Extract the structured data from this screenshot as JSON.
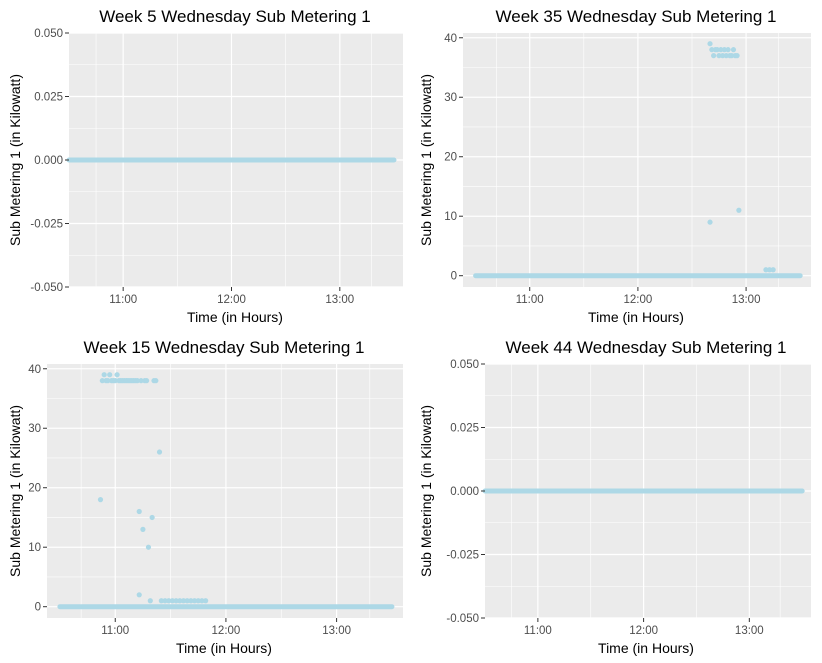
{
  "chart_data": [
    {
      "type": "scatter",
      "title": "Week 5 Wednesday Sub Metering 1",
      "xlabel": "Time (in Hours)",
      "ylabel": "Sub Metering 1 (in Kilowatt)",
      "xlim": [
        "10:30",
        "13:35"
      ],
      "ylim": [
        -0.05,
        0.05
      ],
      "x_ticks": [
        "11:00",
        "12:00",
        "13:00"
      ],
      "y_ticks": [
        "-0.050",
        "-0.025",
        "0.000",
        "0.025",
        "0.050"
      ],
      "y_tick_values": [
        -0.05,
        -0.025,
        0,
        0.025,
        0.05
      ],
      "grid": true,
      "point_color": "#add8e6",
      "baseline": {
        "from": "10:30",
        "to": "13:30",
        "value": 0
      },
      "points": []
    },
    {
      "type": "scatter",
      "title": "Week 35 Wednesday Sub Metering 1",
      "xlabel": "Time (in Hours)",
      "ylabel": "Sub Metering 1 (in Kilowatt)",
      "xlim": [
        "10:23",
        "13:36"
      ],
      "ylim": [
        -1.9,
        40.8
      ],
      "x_ticks": [
        "11:00",
        "12:00",
        "13:00"
      ],
      "y_ticks": [
        "0",
        "10",
        "20",
        "30",
        "40"
      ],
      "y_tick_values": [
        0,
        10,
        20,
        30,
        40
      ],
      "grid": true,
      "point_color": "#add8e6",
      "baseline": {
        "from": "10:30",
        "to": "13:30",
        "value": 0
      },
      "points": [
        {
          "x": "12:40",
          "y": 9
        },
        {
          "x": "12:40",
          "y": 39
        },
        {
          "x": "12:41",
          "y": 38
        },
        {
          "x": "12:42",
          "y": 37
        },
        {
          "x": "12:43",
          "y": 38
        },
        {
          "x": "12:44",
          "y": 38
        },
        {
          "x": "12:45",
          "y": 37
        },
        {
          "x": "12:46",
          "y": 38
        },
        {
          "x": "12:47",
          "y": 37
        },
        {
          "x": "12:48",
          "y": 38
        },
        {
          "x": "12:49",
          "y": 37
        },
        {
          "x": "12:50",
          "y": 38
        },
        {
          "x": "12:51",
          "y": 37
        },
        {
          "x": "12:52",
          "y": 37
        },
        {
          "x": "12:53",
          "y": 38
        },
        {
          "x": "12:54",
          "y": 37
        },
        {
          "x": "12:55",
          "y": 37
        },
        {
          "x": "12:56",
          "y": 11
        },
        {
          "x": "13:11",
          "y": 1
        },
        {
          "x": "13:13",
          "y": 1
        },
        {
          "x": "13:15",
          "y": 1
        }
      ]
    },
    {
      "type": "scatter",
      "title": "Week 15 Wednesday Sub Metering 1",
      "xlabel": "Time (in Hours)",
      "ylabel": "Sub Metering 1 (in Kilowatt)",
      "xlim": [
        "10:23",
        "13:36"
      ],
      "ylim": [
        -1.9,
        40.8
      ],
      "x_ticks": [
        "11:00",
        "12:00",
        "13:00"
      ],
      "y_ticks": [
        "0",
        "10",
        "20",
        "30",
        "40"
      ],
      "y_tick_values": [
        0,
        10,
        20,
        30,
        40
      ],
      "grid": true,
      "point_color": "#add8e6",
      "baseline": {
        "from": "10:30",
        "to": "13:30",
        "value": 0
      },
      "points": [
        {
          "x": "10:52",
          "y": 18
        },
        {
          "x": "10:53",
          "y": 38
        },
        {
          "x": "10:54",
          "y": 39
        },
        {
          "x": "10:55",
          "y": 38
        },
        {
          "x": "10:56",
          "y": 38
        },
        {
          "x": "10:57",
          "y": 39
        },
        {
          "x": "10:58",
          "y": 38
        },
        {
          "x": "10:59",
          "y": 38
        },
        {
          "x": "11:00",
          "y": 38
        },
        {
          "x": "11:01",
          "y": 39
        },
        {
          "x": "11:02",
          "y": 38
        },
        {
          "x": "11:03",
          "y": 38
        },
        {
          "x": "11:04",
          "y": 38
        },
        {
          "x": "11:05",
          "y": 38
        },
        {
          "x": "11:06",
          "y": 38
        },
        {
          "x": "11:07",
          "y": 38
        },
        {
          "x": "11:08",
          "y": 38
        },
        {
          "x": "11:09",
          "y": 38
        },
        {
          "x": "11:10",
          "y": 38
        },
        {
          "x": "11:11",
          "y": 38
        },
        {
          "x": "11:12",
          "y": 38
        },
        {
          "x": "11:13",
          "y": 2
        },
        {
          "x": "11:13",
          "y": 16
        },
        {
          "x": "11:14",
          "y": 38
        },
        {
          "x": "11:15",
          "y": 13
        },
        {
          "x": "11:16",
          "y": 38
        },
        {
          "x": "11:17",
          "y": 38
        },
        {
          "x": "11:18",
          "y": 10
        },
        {
          "x": "11:19",
          "y": 1
        },
        {
          "x": "11:20",
          "y": 15
        },
        {
          "x": "11:21",
          "y": 38
        },
        {
          "x": "11:22",
          "y": 38
        },
        {
          "x": "11:24",
          "y": 26
        },
        {
          "x": "11:25",
          "y": 1
        },
        {
          "x": "11:27",
          "y": 1
        },
        {
          "x": "11:29",
          "y": 1
        },
        {
          "x": "11:31",
          "y": 1
        },
        {
          "x": "11:33",
          "y": 1
        },
        {
          "x": "11:35",
          "y": 1
        },
        {
          "x": "11:37",
          "y": 1
        },
        {
          "x": "11:39",
          "y": 1
        },
        {
          "x": "11:41",
          "y": 1
        },
        {
          "x": "11:43",
          "y": 1
        },
        {
          "x": "11:45",
          "y": 1
        },
        {
          "x": "11:47",
          "y": 1
        },
        {
          "x": "11:49",
          "y": 1
        }
      ]
    },
    {
      "type": "scatter",
      "title": "Week 44 Wednesday Sub Metering 1",
      "xlabel": "Time (in Hours)",
      "ylabel": "Sub Metering 1 (in Kilowatt)",
      "xlim": [
        "10:30",
        "13:35"
      ],
      "ylim": [
        -0.05,
        0.05
      ],
      "x_ticks": [
        "11:00",
        "12:00",
        "13:00"
      ],
      "y_ticks": [
        "-0.050",
        "-0.025",
        "0.000",
        "0.025",
        "0.050"
      ],
      "y_tick_values": [
        -0.05,
        -0.025,
        0,
        0.025,
        0.05
      ],
      "grid": true,
      "point_color": "#add8e6",
      "baseline": {
        "from": "10:30",
        "to": "13:30",
        "value": 0
      },
      "points": []
    }
  ]
}
